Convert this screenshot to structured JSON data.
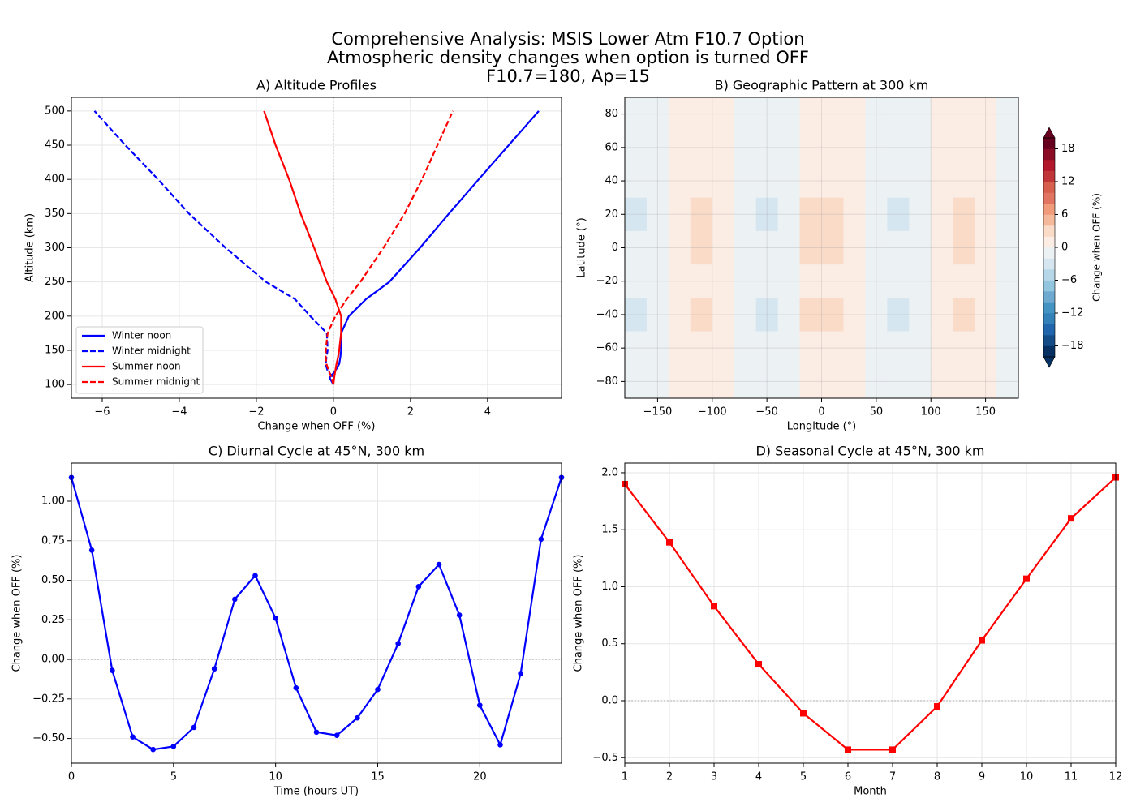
{
  "title": [
    "Comprehensive Analysis: MSIS Lower Atm F10.7 Option",
    "Atmospheric density changes when option is turned OFF",
    "F10.7=180, Ap=15"
  ],
  "chart_data": [
    {
      "type": "profile",
      "title": "A) Altitude Profiles",
      "x_label": "Change when OFF (%)",
      "y_label": "Altitude (km)",
      "y": [
        100,
        110,
        120,
        130,
        140,
        150,
        175,
        200,
        225,
        250,
        300,
        350,
        400,
        450,
        500
      ],
      "series": [
        {
          "name": "Winter noon",
          "color": "#0000ff",
          "dashed": false,
          "x": [
            0,
            -0.1,
            0.05,
            0.15,
            0.18,
            0.2,
            0.2,
            0.4,
            0.85,
            1.45,
            2.25,
            3.0,
            3.77,
            4.55,
            5.33
          ]
        },
        {
          "name": "Winter midnight",
          "color": "#0000ff",
          "dashed": true,
          "x": [
            0,
            0,
            -0.15,
            -0.2,
            -0.18,
            -0.15,
            -0.17,
            -0.6,
            -1.0,
            -1.75,
            -2.8,
            -3.75,
            -4.55,
            -5.4,
            -6.2
          ]
        },
        {
          "name": "Summer noon",
          "color": "#ff0000",
          "dashed": false,
          "x": [
            0,
            0.02,
            0.05,
            0.08,
            0.12,
            0.15,
            0.2,
            0.2,
            0.05,
            -0.17,
            -0.5,
            -0.85,
            -1.15,
            -1.5,
            -1.8
          ]
        },
        {
          "name": "Summer midnight",
          "color": "#ff0000",
          "dashed": true,
          "x": [
            0,
            -0.05,
            -0.12,
            -0.18,
            -0.2,
            -0.2,
            -0.15,
            0.05,
            0.35,
            0.7,
            1.3,
            1.85,
            2.3,
            2.7,
            3.1
          ]
        }
      ],
      "xlim": [
        -6.8,
        5.92
      ],
      "ylim": [
        80,
        520
      ],
      "xticks": [
        {
          "value": -6,
          "label": "−6"
        },
        {
          "value": -4,
          "label": "−4"
        },
        {
          "value": -2,
          "label": "−2"
        },
        0,
        2,
        4
      ],
      "yticks": [
        100,
        150,
        200,
        250,
        300,
        350,
        400,
        450,
        500
      ],
      "reference_line": 0,
      "grid": true,
      "legend": "lower left"
    },
    {
      "type": "heatmap",
      "title": "B) Geographic Pattern at 300 km",
      "x_label": "Longitude (°)",
      "y_label": "Latitude (°)",
      "x": [
        -170,
        -150,
        -130,
        -110,
        -90,
        -70,
        -50,
        -30,
        -10,
        10,
        30,
        50,
        70,
        90,
        110,
        130,
        150,
        170
      ],
      "y": [
        80,
        60,
        40,
        20,
        0,
        -20,
        -40,
        -60,
        -80
      ],
      "z": [
        [
          -0.6,
          -0.3,
          0.3,
          0.6,
          0.3,
          -0.3,
          -0.6,
          -0.3,
          0.6,
          0.6,
          0.3,
          -0.3,
          -0.6,
          -0.3,
          0.3,
          0.6,
          0.3,
          -0.3
        ],
        [
          -1,
          -0.5,
          0.5,
          1,
          0.5,
          -0.5,
          -1,
          -0.5,
          1,
          1,
          0.5,
          -0.5,
          -1,
          -0.5,
          0.5,
          1,
          0.5,
          -0.5
        ],
        [
          -1,
          -0.5,
          0.5,
          1,
          0.5,
          -0.5,
          -1,
          -0.5,
          1,
          1,
          0.5,
          -0.5,
          -1,
          -0.5,
          0.5,
          1,
          0.5,
          -0.5
        ],
        [
          -2.5,
          -1.3,
          1.3,
          2.5,
          1.3,
          -1.3,
          -2.5,
          -1.3,
          2.5,
          2.5,
          1.3,
          -1.3,
          -2.5,
          -1.3,
          1.3,
          2.5,
          1.3,
          -1.3
        ],
        [
          -2,
          -1,
          1,
          2,
          1,
          -1,
          -2,
          -1,
          2,
          2,
          1,
          -1,
          -2,
          -1,
          1,
          2,
          1,
          -1
        ],
        [
          -1,
          -0.5,
          0.5,
          1,
          0.5,
          -0.5,
          -1,
          -0.5,
          1,
          1,
          0.5,
          -0.5,
          -1,
          -0.5,
          0.5,
          1,
          0.5,
          -0.5
        ],
        [
          -2.5,
          -1.3,
          1.3,
          2.5,
          1.3,
          -1.3,
          -2.5,
          -1.3,
          2.5,
          2.5,
          1.3,
          -1.3,
          -2.5,
          -1.3,
          1.3,
          2.5,
          1.3,
          -1.3
        ],
        [
          -1,
          -0.5,
          0.5,
          1,
          0.5,
          -0.5,
          -1,
          -0.5,
          1,
          1,
          0.5,
          -0.5,
          -1,
          -0.5,
          0.5,
          1,
          0.5,
          -0.5
        ],
        [
          -0.6,
          -0.3,
          0.3,
          0.6,
          0.3,
          -0.3,
          -0.6,
          -0.3,
          0.6,
          0.6,
          0.3,
          -0.3,
          -0.6,
          -0.3,
          0.3,
          0.6,
          0.3,
          -0.3
        ]
      ],
      "xlim": [
        -180,
        180
      ],
      "ylim": [
        -90,
        90
      ],
      "xticks": [
        {
          "value": -150,
          "label": "−150"
        },
        {
          "value": -100,
          "label": "−100"
        },
        {
          "value": -50,
          "label": "−50"
        },
        0,
        50,
        100,
        150
      ],
      "yticks": [
        {
          "value": -80,
          "label": "−80"
        },
        {
          "value": -60,
          "label": "−60"
        },
        {
          "value": -40,
          "label": "−40"
        },
        {
          "value": -20,
          "label": "−20"
        },
        0,
        20,
        40,
        60,
        80
      ],
      "levels": [
        -20,
        -18,
        -16,
        -14,
        -12,
        -10,
        -8,
        -6,
        -4,
        -2,
        0,
        2,
        4,
        6,
        8,
        10,
        12,
        14,
        16,
        18,
        20
      ],
      "colors": [
        "#053061",
        "#134c87",
        "#2166ac",
        "#3480b9",
        "#4393c3",
        "#6eaad0",
        "#92c5de",
        "#b5d7e8",
        "#d6e6f0",
        "#ecf1f4",
        "#fbece4",
        "#fadbc8",
        "#f4b99b",
        "#f09c7b",
        "#e27462",
        "#d6604d",
        "#c13639",
        "#b2182b",
        "#8b0c25",
        "#67001f"
      ],
      "extend": "both",
      "colorbar_label": "Change when OFF (%)",
      "colorbar_ticks": [
        {
          "value": -18,
          "label": "−18"
        },
        {
          "value": -12,
          "label": "−12"
        },
        {
          "value": -6,
          "label": "−6"
        },
        0,
        6,
        12,
        18
      ],
      "grid": true
    },
    {
      "type": "line",
      "title": "C) Diurnal Cycle at 45°N, 300 km",
      "x_label": "Time (hours UT)",
      "y_label": "Change when OFF (%)",
      "x": [
        0,
        1,
        2,
        3,
        4,
        5,
        6,
        7,
        8,
        9,
        10,
        11,
        12,
        13,
        14,
        15,
        16,
        17,
        18,
        19,
        20,
        21,
        22,
        23,
        24
      ],
      "series": [
        {
          "color": "#0000ff",
          "marker": "circle",
          "values": [
            1.15,
            0.69,
            -0.07,
            -0.49,
            -0.57,
            -0.55,
            -0.43,
            -0.06,
            0.38,
            0.53,
            0.26,
            -0.18,
            -0.46,
            -0.48,
            -0.37,
            -0.19,
            0.1,
            0.46,
            0.6,
            0.28,
            -0.29,
            -0.54,
            -0.09,
            0.76,
            1.15
          ]
        }
      ],
      "xlim": [
        0,
        24
      ],
      "ylim": [
        -0.656,
        1.241
      ],
      "xticks": [
        0,
        5,
        10,
        15,
        20
      ],
      "yticks": [
        {
          "value": -0.5,
          "label": "−0.50"
        },
        {
          "value": -0.25,
          "label": "−0.25"
        },
        {
          "value": 0,
          "label": "0.00"
        },
        {
          "value": 0.25,
          "label": "0.25"
        },
        {
          "value": 0.5,
          "label": "0.50"
        },
        {
          "value": 0.75,
          "label": "0.75"
        },
        {
          "value": 1,
          "label": "1.00"
        }
      ],
      "reference_line": 0,
      "grid": true
    },
    {
      "type": "line",
      "title": "D) Seasonal Cycle at 45°N, 300 km",
      "x_label": "Month",
      "y_label": "Change when OFF (%)",
      "x": [
        1,
        2,
        3,
        4,
        5,
        6,
        7,
        8,
        9,
        10,
        11,
        12
      ],
      "series": [
        {
          "color": "#ff0000",
          "marker": "square",
          "values": [
            1.9,
            1.39,
            0.83,
            0.32,
            -0.11,
            -0.43,
            -0.43,
            -0.05,
            0.53,
            1.07,
            1.6,
            1.96
          ]
        }
      ],
      "xlim": [
        1,
        12
      ],
      "ylim": [
        -0.548,
        2.085
      ],
      "xticks": [
        1,
        2,
        3,
        4,
        5,
        6,
        7,
        8,
        9,
        10,
        11,
        12
      ],
      "yticks": [
        {
          "value": -0.5,
          "label": "−0.5"
        },
        {
          "value": 0,
          "label": "0.0"
        },
        {
          "value": 0.5,
          "label": "0.5"
        },
        {
          "value": 1,
          "label": "1.0"
        },
        {
          "value": 1.5,
          "label": "1.5"
        },
        {
          "value": 2,
          "label": "2.0"
        }
      ],
      "reference_line": 0,
      "grid": true
    }
  ]
}
